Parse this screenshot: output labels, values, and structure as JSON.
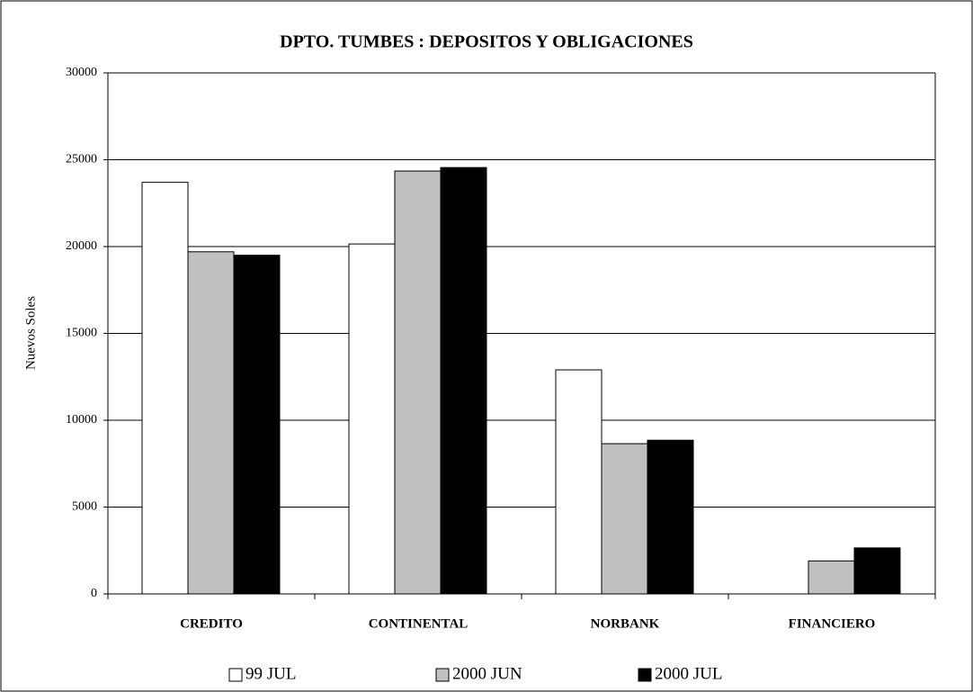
{
  "chart_data": {
    "type": "bar",
    "title": "DPTO. TUMBES : DEPOSITOS  Y OBLIGACIONES",
    "y_label": "Nuevos Soles",
    "categories": [
      "CREDITO",
      "CONTINENTAL",
      "NORBANK",
      "FINANCIERO"
    ],
    "series": [
      {
        "name": "99 JUL",
        "color": "#ffffff",
        "values": [
          23700,
          20150,
          12900,
          null
        ]
      },
      {
        "name": "2000 JUN",
        "color": "#c0c0c0",
        "values": [
          19700,
          24350,
          8650,
          1900
        ]
      },
      {
        "name": "2000 JUL",
        "color": "#000000",
        "values": [
          19500,
          24550,
          8850,
          2650
        ]
      }
    ],
    "ylim": [
      0,
      30000
    ],
    "yticks": [
      0,
      5000,
      10000,
      15000,
      20000,
      25000,
      30000
    ],
    "grid": true,
    "legend": "bottom"
  }
}
